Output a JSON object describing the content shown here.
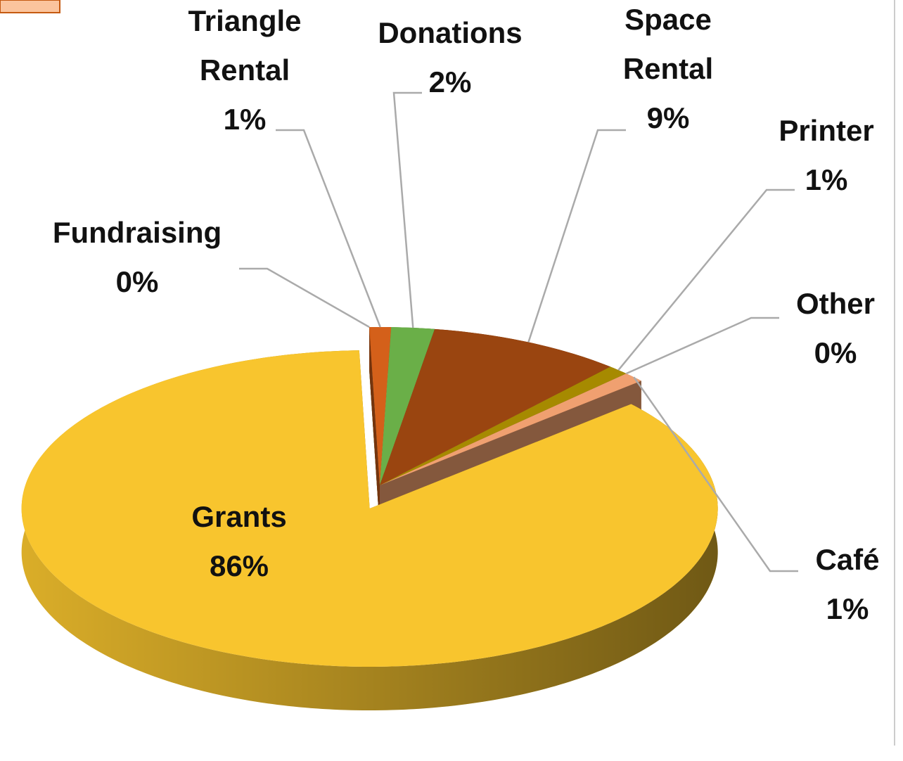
{
  "chart_data": {
    "type": "pie",
    "categories": [
      "Fundraising",
      "Triangle Rental",
      "Donations",
      "Space Rental",
      "Printer",
      "Other",
      "Café",
      "Grants"
    ],
    "values": [
      0,
      1,
      2,
      9,
      1,
      0,
      1,
      86
    ],
    "value_labels": [
      "0%",
      "1%",
      "2%",
      "9%",
      "1%",
      "0%",
      "1%",
      "86%"
    ],
    "colors": [
      "#7dbb52",
      "#d4601a",
      "#6aaf48",
      "#9a4510",
      "#a68a00",
      "#2f5a2a",
      "#f0a070",
      "#f8c52e"
    ],
    "explode": [
      0,
      0,
      0,
      0,
      0,
      0,
      0,
      1
    ]
  }
}
